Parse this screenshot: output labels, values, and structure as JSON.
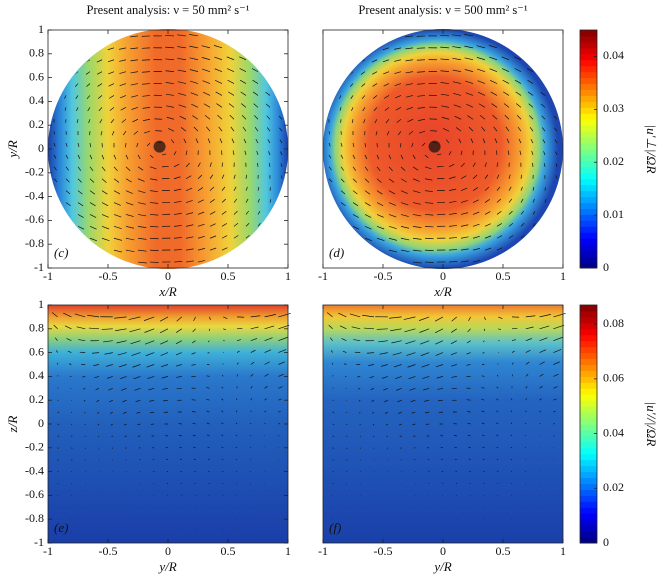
{
  "chart_data": [
    {
      "type": "contour",
      "title": "Present analysis: ν =  50 mm² s⁻¹",
      "panel_label": "(c)",
      "x_label": "x/R",
      "y_label": "y/R",
      "domain": "disk",
      "xlim": [
        -1,
        1
      ],
      "xticks": [
        -1,
        -0.5,
        0,
        0.5,
        1
      ],
      "ylim": [
        -1,
        1
      ],
      "yticks": [
        -1,
        -0.8,
        -0.6,
        -0.4,
        -0.2,
        0,
        0.2,
        0.4,
        0.6,
        0.8,
        1
      ]
    },
    {
      "type": "contour",
      "title": "Present analysis: ν = 500 mm² s⁻¹",
      "panel_label": "(d)",
      "x_label": "x/R",
      "domain": "disk",
      "xlim": [
        -1,
        1
      ],
      "xticks": [
        -1,
        -0.5,
        0,
        0.5,
        1
      ],
      "ylim": [
        -1,
        1
      ]
    },
    {
      "type": "colorbar",
      "label": "|u′⊥|/ΩR",
      "colormap": "jet",
      "ylim": [
        0,
        0.045
      ],
      "yticks": [
        0,
        0.01,
        0.02,
        0.03,
        0.04
      ]
    },
    {
      "type": "contour",
      "panel_label": "(e)",
      "x_label": "y/R",
      "y_label": "z/R",
      "domain": "box",
      "xlim": [
        -1,
        1
      ],
      "xticks": [
        -1,
        -0.5,
        0,
        0.5,
        1
      ],
      "ylim": [
        -1,
        1
      ],
      "yticks": [
        -1,
        -0.8,
        -0.6,
        -0.4,
        -0.2,
        0,
        0.2,
        0.4,
        0.6,
        0.8,
        1
      ]
    },
    {
      "type": "contour",
      "panel_label": "(f)",
      "x_label": "y/R",
      "domain": "box",
      "xlim": [
        -1,
        1
      ],
      "xticks": [
        -1,
        -0.5,
        0,
        0.5,
        1
      ],
      "ylim": [
        -1,
        1
      ]
    },
    {
      "type": "colorbar",
      "label": "|u′//|/ΩR",
      "colormap": "jet",
      "ylim": [
        0,
        0.087
      ],
      "yticks": [
        0,
        0.02,
        0.04,
        0.06,
        0.08
      ]
    }
  ]
}
